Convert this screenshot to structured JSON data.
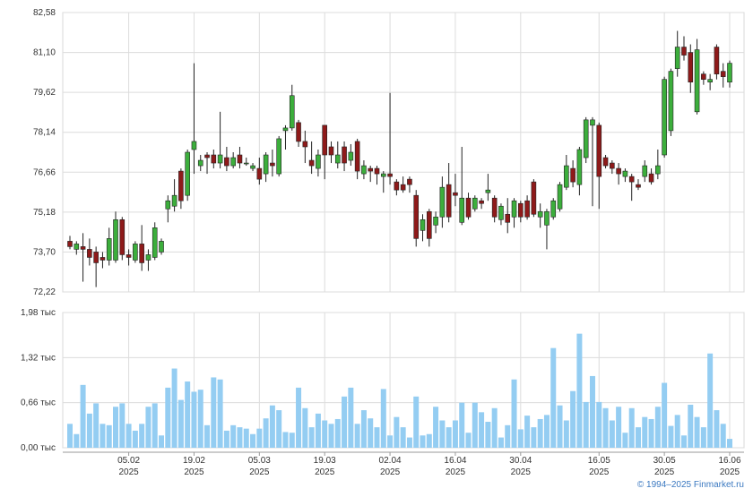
{
  "chart_data": {
    "type": "candlestick",
    "x": [
      "2025-01-23",
      "2025-01-24",
      "2025-01-27",
      "2025-01-28",
      "2025-01-29",
      "2025-01-30",
      "2025-01-31",
      "2025-02-03",
      "2025-02-04",
      "2025-02-05",
      "2025-02-06",
      "2025-02-07",
      "2025-02-10",
      "2025-02-11",
      "2025-02-12",
      "2025-02-13",
      "2025-02-14",
      "2025-02-17",
      "2025-02-18",
      "2025-02-19",
      "2025-02-20",
      "2025-02-21",
      "2025-02-24",
      "2025-02-25",
      "2025-02-26",
      "2025-02-27",
      "2025-02-28",
      "2025-03-03",
      "2025-03-04",
      "2025-03-05",
      "2025-03-06",
      "2025-03-07",
      "2025-03-10",
      "2025-03-11",
      "2025-03-12",
      "2025-03-13",
      "2025-03-14",
      "2025-03-17",
      "2025-03-18",
      "2025-03-19",
      "2025-03-20",
      "2025-03-21",
      "2025-03-24",
      "2025-03-25",
      "2025-03-26",
      "2025-03-27",
      "2025-03-28",
      "2025-03-31",
      "2025-04-01",
      "2025-04-02",
      "2025-04-03",
      "2025-04-04",
      "2025-04-07",
      "2025-04-08",
      "2025-04-09",
      "2025-04-10",
      "2025-04-11",
      "2025-04-14",
      "2025-04-15",
      "2025-04-16",
      "2025-04-17",
      "2025-04-18",
      "2025-04-21",
      "2025-04-22",
      "2025-04-23",
      "2025-04-24",
      "2025-04-25",
      "2025-04-28",
      "2025-04-29",
      "2025-04-30",
      "2025-05-01",
      "2025-05-02",
      "2025-05-05",
      "2025-05-06",
      "2025-05-07",
      "2025-05-08",
      "2025-05-09",
      "2025-05-12",
      "2025-05-13",
      "2025-05-14",
      "2025-05-15",
      "2025-05-16",
      "2025-05-19",
      "2025-05-20",
      "2025-05-21",
      "2025-05-22",
      "2025-05-23",
      "2025-05-26",
      "2025-05-27",
      "2025-05-28",
      "2025-05-29",
      "2025-05-30",
      "2025-06-02",
      "2025-06-03",
      "2025-06-04",
      "2025-06-05",
      "2025-06-06",
      "2025-06-09",
      "2025-06-10",
      "2025-06-11",
      "2025-06-13",
      "2025-06-16"
    ],
    "open": [
      74.1,
      73.8,
      73.9,
      73.8,
      73.7,
      73.5,
      73.4,
      73.4,
      74.9,
      73.6,
      73.4,
      74.0,
      73.4,
      73.5,
      73.7,
      75.3,
      75.4,
      76.7,
      75.8,
      77.5,
      76.9,
      77.3,
      77.3,
      77.0,
      77.2,
      76.9,
      77.3,
      77.0,
      76.8,
      76.8,
      76.6,
      77.0,
      76.6,
      78.2,
      78.3,
      78.5,
      77.8,
      77.1,
      76.8,
      78.4,
      77.6,
      77.0,
      77.6,
      77.1,
      77.8,
      76.6,
      76.8,
      76.8,
      76.5,
      76.6,
      76.3,
      76.2,
      76.4,
      75.8,
      74.5,
      75.2,
      74.7,
      75.0,
      76.2,
      75.9,
      74.8,
      75.7,
      75.3,
      75.6,
      75.9,
      75.7,
      74.9,
      75.1,
      75.0,
      75.5,
      75.6,
      76.3,
      75.0,
      74.7,
      75.0,
      75.3,
      76.1,
      76.8,
      76.2,
      77.2,
      78.4,
      78.4,
      77.2,
      77.0,
      76.8,
      76.5,
      76.5,
      76.2,
      76.5,
      76.6,
      76.6,
      77.3,
      78.2,
      80.5,
      81.3,
      81.1,
      78.9,
      80.3,
      80.0,
      81.3,
      80.4,
      80.0
    ],
    "high": [
      74.3,
      74.1,
      74.4,
      74.2,
      73.9,
      73.7,
      74.6,
      75.2,
      75.0,
      73.8,
      74.1,
      74.7,
      73.8,
      74.8,
      74.2,
      75.8,
      76.4,
      76.8,
      77.5,
      80.7,
      77.3,
      77.4,
      77.5,
      78.9,
      77.6,
      77.4,
      77.6,
      77.2,
      77.0,
      77.2,
      77.4,
      77.5,
      78.0,
      78.4,
      79.9,
      78.6,
      78.2,
      77.8,
      77.5,
      78.4,
      77.8,
      77.8,
      77.8,
      77.7,
      77.9,
      77.1,
      76.9,
      76.9,
      76.7,
      79.6,
      76.4,
      76.5,
      76.5,
      76.0,
      75.1,
      75.3,
      75.2,
      76.5,
      77.0,
      76.6,
      77.6,
      75.9,
      75.8,
      75.7,
      76.6,
      75.8,
      75.5,
      75.7,
      75.7,
      75.6,
      75.8,
      76.4,
      75.5,
      75.3,
      75.7,
      76.3,
      77.3,
      77.1,
      77.6,
      78.7,
      78.7,
      78.5,
      77.3,
      77.1,
      77.0,
      76.8,
      76.6,
      76.4,
      77.1,
      76.8,
      77.5,
      80.2,
      80.5,
      81.9,
      81.7,
      81.4,
      81.6,
      80.4,
      80.3,
      81.4,
      80.7,
      80.8
    ],
    "low": [
      73.8,
      73.6,
      72.6,
      73.2,
      72.4,
      73.1,
      73.2,
      73.3,
      73.4,
      73.2,
      73.3,
      73.0,
      73.0,
      73.4,
      73.6,
      74.8,
      75.2,
      75.3,
      75.6,
      76.6,
      76.7,
      76.6,
      76.8,
      76.8,
      76.7,
      76.8,
      76.8,
      76.9,
      76.7,
      76.2,
      76.3,
      76.5,
      76.5,
      77.5,
      78.2,
      77.6,
      77.0,
      76.6,
      76.5,
      76.4,
      77.0,
      76.8,
      76.7,
      76.9,
      76.4,
      76.4,
      76.3,
      76.2,
      75.9,
      76.2,
      75.8,
      75.9,
      75.9,
      73.9,
      74.1,
      73.9,
      74.4,
      74.6,
      74.8,
      75.4,
      74.7,
      74.9,
      75.2,
      75.3,
      75.6,
      74.8,
      74.7,
      74.4,
      74.6,
      74.8,
      74.9,
      75.0,
      74.6,
      73.8,
      74.9,
      75.2,
      76.0,
      76.1,
      75.8,
      77.0,
      75.4,
      75.3,
      76.8,
      76.6,
      76.2,
      76.3,
      75.6,
      76.0,
      76.3,
      76.2,
      76.4,
      77.2,
      78.0,
      80.2,
      80.8,
      79.6,
      78.8,
      79.9,
      79.7,
      80.1,
      79.8,
      79.8
    ],
    "close": [
      73.9,
      74.0,
      73.8,
      73.5,
      73.3,
      73.4,
      74.2,
      74.9,
      73.6,
      73.5,
      74.0,
      73.3,
      73.6,
      74.6,
      74.1,
      75.6,
      75.8,
      75.6,
      77.4,
      77.8,
      77.1,
      77.2,
      77.0,
      77.3,
      76.9,
      77.2,
      77.0,
      77.0,
      76.9,
      76.4,
      77.3,
      76.9,
      77.9,
      78.3,
      79.5,
      77.8,
      77.6,
      76.9,
      77.3,
      77.3,
      77.3,
      77.3,
      77.0,
      77.4,
      76.7,
      76.9,
      76.7,
      76.6,
      76.6,
      76.5,
      76.0,
      76.0,
      76.2,
      74.2,
      74.9,
      74.2,
      75.0,
      76.1,
      75.0,
      75.8,
      75.7,
      75.0,
      75.7,
      75.5,
      76.0,
      75.0,
      75.4,
      74.8,
      75.6,
      75.0,
      75.0,
      75.1,
      75.2,
      75.2,
      75.6,
      76.2,
      76.9,
      76.3,
      77.5,
      78.6,
      78.6,
      76.5,
      76.9,
      76.8,
      76.6,
      76.7,
      76.3,
      76.1,
      76.9,
      76.3,
      76.9,
      80.1,
      80.4,
      81.3,
      81.0,
      80.0,
      81.2,
      80.1,
      80.1,
      80.3,
      80.2,
      80.7
    ],
    "volume": [
      0.35,
      0.2,
      0.92,
      0.5,
      0.65,
      0.35,
      0.33,
      0.6,
      0.65,
      0.35,
      0.25,
      0.35,
      0.6,
      0.65,
      0.18,
      0.88,
      1.16,
      0.7,
      0.97,
      0.82,
      0.85,
      0.33,
      1.03,
      1.0,
      0.25,
      0.33,
      0.3,
      0.28,
      0.2,
      0.28,
      0.43,
      0.62,
      0.55,
      0.23,
      0.22,
      0.88,
      0.58,
      0.3,
      0.5,
      0.4,
      0.35,
      0.42,
      0.75,
      0.88,
      0.35,
      0.55,
      0.43,
      0.3,
      0.86,
      0.18,
      0.45,
      0.3,
      0.15,
      0.75,
      0.18,
      0.2,
      0.6,
      0.4,
      0.3,
      0.4,
      0.66,
      0.22,
      0.66,
      0.52,
      0.38,
      0.58,
      0.15,
      0.33,
      1.0,
      0.27,
      0.47,
      0.3,
      0.42,
      0.48,
      1.46,
      0.62,
      0.4,
      0.83,
      1.67,
      0.67,
      1.05,
      0.67,
      0.58,
      0.4,
      0.6,
      0.22,
      0.58,
      0.3,
      0.45,
      0.42,
      0.6,
      0.95,
      0.32,
      0.48,
      0.18,
      0.63,
      0.45,
      0.3,
      1.38,
      0.55,
      0.35,
      0.13
    ],
    "up_color": "#3cae3c",
    "down_color": "#8e1a1a",
    "volume_color": "#94cdf2",
    "ylim": [
      72.22,
      82.58
    ],
    "yticks": [
      {
        "value": 72.22,
        "label": "72,22"
      },
      {
        "value": 73.7,
        "label": "73,70"
      },
      {
        "value": 75.18,
        "label": "75,18"
      },
      {
        "value": 76.66,
        "label": "76,66"
      },
      {
        "value": 78.14,
        "label": "78,14"
      },
      {
        "value": 79.62,
        "label": "79,62"
      },
      {
        "value": 81.1,
        "label": "81,10"
      },
      {
        "value": 82.58,
        "label": "82,58"
      }
    ],
    "volume_ylim": [
      0,
      1.98
    ],
    "volume_yticks": [
      {
        "value": 0,
        "label": "0,00 тыс"
      },
      {
        "value": 0.66,
        "label": "0,66 тыс"
      },
      {
        "value": 1.32,
        "label": "1,32 тыс"
      },
      {
        "value": 1.98,
        "label": "1,98 тыс"
      }
    ],
    "xticks": [
      {
        "value": "2025-02-05",
        "label": [
          "05.02",
          "2025"
        ]
      },
      {
        "value": "2025-02-19",
        "label": [
          "19.02",
          "2025"
        ]
      },
      {
        "value": "2025-03-05",
        "label": [
          "05.03",
          "2025"
        ]
      },
      {
        "value": "2025-03-19",
        "label": [
          "19.03",
          "2025"
        ]
      },
      {
        "value": "2025-04-02",
        "label": [
          "02.04",
          "2025"
        ]
      },
      {
        "value": "2025-04-16",
        "label": [
          "16.04",
          "2025"
        ]
      },
      {
        "value": "2025-04-30",
        "label": [
          "30.04",
          "2025"
        ]
      },
      {
        "value": "2025-05-16",
        "label": [
          "16.05",
          "2025"
        ]
      },
      {
        "value": "2025-05-30",
        "label": [
          "30.05",
          "2025"
        ]
      },
      {
        "value": "2025-06-16",
        "label": [
          "16.06",
          "2025"
        ]
      }
    ],
    "grid": true,
    "credit": "© 1994–2025 Finmarket.ru"
  }
}
